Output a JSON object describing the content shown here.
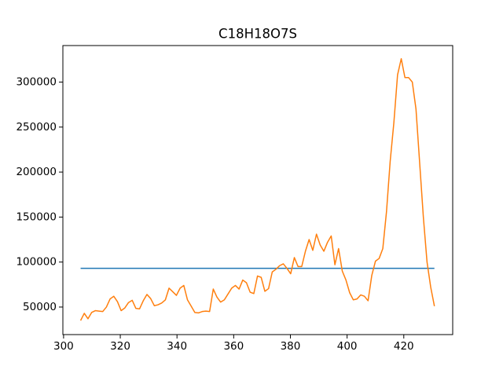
{
  "chart_data": {
    "type": "line",
    "title": "C18H18O7S",
    "series": [
      {
        "color": "#1f77b4",
        "x": [
          306,
          430.8
        ],
        "values": [
          93000,
          93000
        ]
      },
      {
        "color": "#ff7f0e",
        "x": [
          306,
          307.3,
          308.6,
          309.9,
          311.2,
          312.5,
          313.8,
          315.1,
          316.4,
          317.7,
          319,
          320.3,
          321.6,
          322.9,
          324.2,
          325.5,
          326.8,
          328.1,
          329.4,
          330.7,
          332,
          333.3,
          334.6,
          335.9,
          337.2,
          338.5,
          339.8,
          341.1,
          342.4,
          343.7,
          345,
          346.3,
          347.6,
          348.9,
          350.2,
          351.5,
          352.8,
          354.1,
          355.4,
          356.7,
          358,
          359.3,
          360.6,
          361.9,
          363.2,
          364.5,
          365.8,
          367.1,
          368.4,
          369.7,
          371,
          372.3,
          373.6,
          374.9,
          376.2,
          377.5,
          378.8,
          380.1,
          381.4,
          382.7,
          384,
          385.3,
          386.6,
          387.9,
          389.2,
          390.5,
          391.8,
          393.1,
          394.4,
          395.7,
          397,
          398.3,
          399.6,
          400.9,
          402.2,
          403.5,
          404.8,
          406.1,
          407.4,
          408.7,
          410,
          411.3,
          412.6,
          413.9,
          415.2,
          416.5,
          417.8,
          419.1,
          420.4,
          421.7,
          423,
          424.3,
          425.6,
          426.9,
          428.2,
          429.5,
          430.8
        ],
        "values": [
          35000,
          43000,
          37000,
          44000,
          46000,
          45500,
          45000,
          50000,
          59000,
          62000,
          56000,
          46000,
          49000,
          55000,
          57500,
          48500,
          48000,
          57000,
          64000,
          59500,
          51500,
          52500,
          54500,
          58000,
          71000,
          67000,
          63000,
          71000,
          74000,
          58000,
          51000,
          44000,
          43500,
          45000,
          45500,
          45000,
          70000,
          61000,
          55500,
          58000,
          64500,
          71000,
          74000,
          70000,
          80000,
          77000,
          66500,
          65000,
          84500,
          83000,
          67500,
          70500,
          89000,
          92000,
          96000,
          98000,
          93000,
          87000,
          105000,
          95000,
          95000,
          112000,
          125000,
          113000,
          131000,
          119000,
          112000,
          122000,
          129000,
          97000,
          115000,
          90000,
          80000,
          66000,
          58000,
          59000,
          63500,
          62000,
          57000,
          85000,
          101000,
          104000,
          115000,
          156000,
          212000,
          255000,
          308000,
          326000,
          305000,
          305000,
          300000,
          270000,
          210000,
          150000,
          100000,
          72000,
          51000
        ]
      }
    ],
    "xlim": [
      299.75,
      437.25
    ],
    "xticks": [
      300,
      320,
      340,
      360,
      380,
      400,
      420
    ],
    "ylim": [
      19400,
      340600
    ],
    "yticks": [
      50000,
      100000,
      150000,
      200000,
      250000,
      300000
    ],
    "grid": false
  }
}
